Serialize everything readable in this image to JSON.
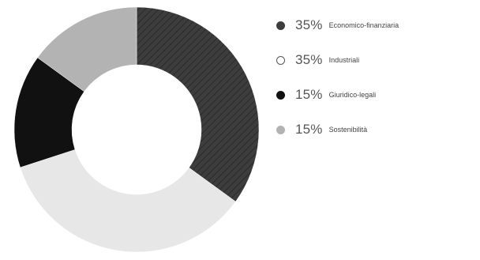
{
  "chart_data": {
    "type": "pie",
    "donut": true,
    "title": "",
    "slices": [
      {
        "pct_label": "35%",
        "label": "Economico-finanziaria",
        "value": 35,
        "color": "#3d3d3d",
        "hatched": true
      },
      {
        "pct_label": "35%",
        "label": "Industriali",
        "value": 35,
        "color": "#e7e7e7",
        "hatched": false
      },
      {
        "pct_label": "15%",
        "label": "Giuridico-legali",
        "value": 15,
        "color": "#111111",
        "hatched": false
      },
      {
        "pct_label": "15%",
        "label": "Sostenibilità",
        "value": 15,
        "color": "#b3b3b3",
        "hatched": false
      }
    ],
    "legend_placement": "right",
    "start_angle_deg": 0,
    "direction": "clockwise"
  }
}
